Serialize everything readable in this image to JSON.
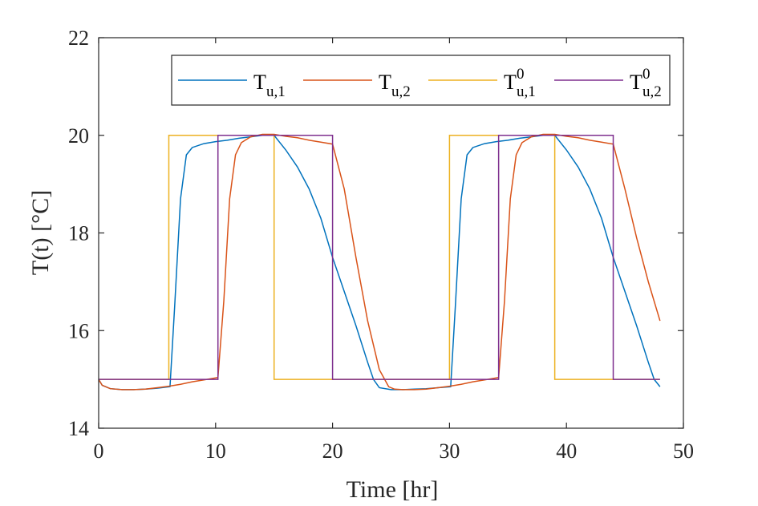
{
  "chart_data": {
    "type": "line",
    "title": "",
    "xlabel": "Time [hr]",
    "ylabel": "T(t) [°C]",
    "xlim": [
      0,
      50
    ],
    "ylim": [
      14,
      22
    ],
    "xticks": [
      0,
      10,
      20,
      30,
      40,
      50
    ],
    "yticks": [
      14,
      16,
      18,
      20,
      22
    ],
    "grid": false,
    "legend_position": "top",
    "series": [
      {
        "name": "T_u,1",
        "label_main": "T",
        "label_sub": "u,1",
        "label_sup": "",
        "color": "#0072BD",
        "x": [
          0,
          0.3,
          1,
          2,
          3,
          4,
          5,
          6.1,
          6.5,
          7,
          7.5,
          8,
          9,
          10,
          11,
          12,
          13,
          14,
          15,
          16,
          17,
          18,
          19,
          20,
          21,
          22,
          23,
          23.5,
          24,
          25,
          26,
          27,
          28,
          29,
          30.1,
          30.5,
          31,
          31.5,
          32,
          33,
          34,
          35,
          36,
          37,
          38,
          39,
          40,
          41,
          42,
          43,
          44,
          45,
          46,
          47,
          47.5,
          48
        ],
        "y": [
          15.0,
          14.88,
          14.81,
          14.79,
          14.79,
          14.8,
          14.82,
          14.85,
          16.5,
          18.7,
          19.6,
          19.75,
          19.83,
          19.87,
          19.9,
          19.94,
          19.97,
          20.0,
          20.0,
          19.7,
          19.35,
          18.9,
          18.3,
          17.5,
          16.8,
          16.1,
          15.35,
          15.0,
          14.83,
          14.79,
          14.79,
          14.8,
          14.81,
          14.83,
          14.85,
          16.5,
          18.7,
          19.6,
          19.75,
          19.83,
          19.87,
          19.9,
          19.94,
          19.97,
          20.0,
          20.0,
          19.7,
          19.35,
          18.9,
          18.3,
          17.5,
          16.8,
          16.1,
          15.35,
          15.0,
          14.85
        ]
      },
      {
        "name": "T_u,2",
        "label_main": "T",
        "label_sub": "u,2",
        "label_sup": "",
        "color": "#D95319",
        "x": [
          0,
          0.3,
          1,
          2,
          3,
          4,
          5,
          6,
          7,
          8,
          9,
          10.2,
          10.7,
          11.2,
          11.7,
          12.2,
          13,
          14,
          15,
          16,
          17,
          18,
          19,
          20,
          21,
          22,
          23,
          24,
          24.8,
          25.3,
          26,
          27,
          28,
          29,
          30,
          31,
          32,
          33,
          34.2,
          34.7,
          35.2,
          35.7,
          36.2,
          37,
          38,
          39,
          40,
          41,
          42,
          43,
          44,
          45,
          46,
          47,
          48
        ],
        "y": [
          15.0,
          14.88,
          14.81,
          14.79,
          14.79,
          14.8,
          14.83,
          14.86,
          14.9,
          14.95,
          14.99,
          15.04,
          16.6,
          18.7,
          19.6,
          19.85,
          19.97,
          20.02,
          20.02,
          19.98,
          19.95,
          19.9,
          19.86,
          19.82,
          18.9,
          17.5,
          16.2,
          15.2,
          14.85,
          14.8,
          14.79,
          14.79,
          14.8,
          14.83,
          14.86,
          14.9,
          14.95,
          14.99,
          15.04,
          16.6,
          18.7,
          19.6,
          19.85,
          19.97,
          20.02,
          20.02,
          19.98,
          19.95,
          19.9,
          19.86,
          19.82,
          18.9,
          17.9,
          17.0,
          16.2
        ]
      },
      {
        "name": "T0_u,1",
        "label_main": "T",
        "label_sub": "u,1",
        "label_sup": "0",
        "color": "#EDB120",
        "x": [
          0,
          6,
          6,
          15,
          15,
          30,
          30,
          39,
          39,
          48
        ],
        "y": [
          15,
          15,
          20,
          20,
          15,
          15,
          20,
          20,
          15,
          15
        ]
      },
      {
        "name": "T0_u,2",
        "label_main": "T",
        "label_sub": "u,2",
        "label_sup": "0",
        "color": "#7E2F8E",
        "x": [
          0,
          10.2,
          10.2,
          20,
          20,
          34.2,
          34.2,
          44,
          44,
          48
        ],
        "y": [
          15,
          15,
          20,
          20,
          15,
          15,
          20,
          20,
          15,
          15
        ]
      }
    ]
  }
}
